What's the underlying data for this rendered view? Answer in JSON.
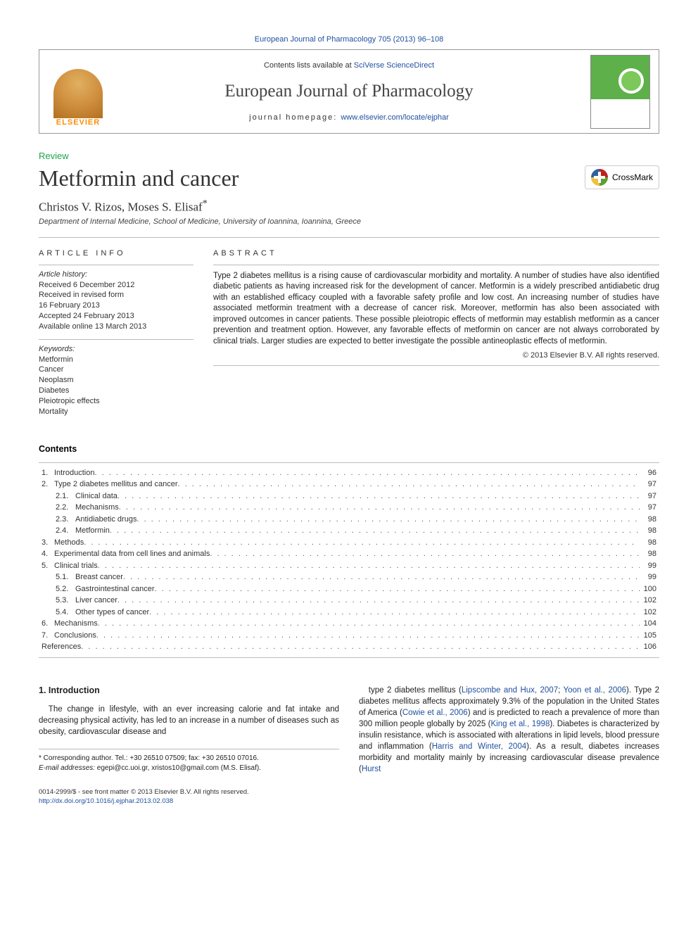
{
  "colors": {
    "link": "#2050a0",
    "review_green": "#1aa54a",
    "text": "#222222",
    "rule": "#bbbbbb",
    "elsevier_orange": "#ff8c00",
    "cover_green": "#5db04a"
  },
  "topLink": {
    "journal": "European Journal of Pharmacology 705 (2013) 96–108"
  },
  "header": {
    "publisher_logo_text": "ELSEVIER",
    "contents_prefix": "Contents lists available at ",
    "contents_link": "SciVerse ScienceDirect",
    "journal_name": "European Journal of Pharmacology",
    "homepage_prefix": "journal homepage: ",
    "homepage_link": "www.elsevier.com/locate/ejphar"
  },
  "review_label": "Review",
  "title": "Metformin and cancer",
  "crossmark_label": "CrossMark",
  "authors": "Christos V. Rizos, Moses S. Elisaf",
  "author_note_marker": "*",
  "affiliation": "Department of Internal Medicine, School of Medicine, University of Ioannina, Ioannina, Greece",
  "article_info_label": "ARTICLE INFO",
  "history": {
    "title": "Article history:",
    "lines": [
      "Received 6 December 2012",
      "Received in revised form",
      "16 February 2013",
      "Accepted 24 February 2013",
      "Available online 13 March 2013"
    ]
  },
  "keywords": {
    "title": "Keywords:",
    "items": [
      "Metformin",
      "Cancer",
      "Neoplasm",
      "Diabetes",
      "Pleiotropic effects",
      "Mortality"
    ]
  },
  "abstract_label": "ABSTRACT",
  "abstract": "Type 2 diabetes mellitus is a rising cause of cardiovascular morbidity and mortality. A number of studies have also identified diabetic patients as having increased risk for the development of cancer. Metformin is a widely prescribed antidiabetic drug with an established efficacy coupled with a favorable safety profile and low cost. An increasing number of studies have associated metformin treatment with a decrease of cancer risk. Moreover, metformin has also been associated with improved outcomes in cancer patients. These possible pleiotropic effects of metformin may establish metformin as a cancer prevention and treatment option. However, any favorable effects of metformin on cancer are not always corroborated by clinical trials. Larger studies are expected to better investigate the possible antineoplastic effects of metformin.",
  "copyright": "© 2013 Elsevier B.V. All rights reserved.",
  "contents_title": "Contents",
  "toc": [
    {
      "level": 1,
      "num": "1.",
      "label": "Introduction",
      "page": "96"
    },
    {
      "level": 1,
      "num": "2.",
      "label": "Type 2 diabetes mellitus and cancer",
      "page": "97"
    },
    {
      "level": 2,
      "num": "2.1.",
      "label": "Clinical data",
      "page": "97"
    },
    {
      "level": 2,
      "num": "2.2.",
      "label": "Mechanisms",
      "page": "97"
    },
    {
      "level": 2,
      "num": "2.3.",
      "label": "Antidiabetic drugs",
      "page": "98"
    },
    {
      "level": 2,
      "num": "2.4.",
      "label": "Metformin",
      "page": "98"
    },
    {
      "level": 1,
      "num": "3.",
      "label": "Methods",
      "page": "98"
    },
    {
      "level": 1,
      "num": "4.",
      "label": "Experimental data from cell lines and animals",
      "page": "98"
    },
    {
      "level": 1,
      "num": "5.",
      "label": "Clinical trials",
      "page": "99"
    },
    {
      "level": 2,
      "num": "5.1.",
      "label": "Breast cancer",
      "page": "99"
    },
    {
      "level": 2,
      "num": "5.2.",
      "label": "Gastrointestinal cancer",
      "page": "100"
    },
    {
      "level": 2,
      "num": "5.3.",
      "label": "Liver cancer",
      "page": "102"
    },
    {
      "level": 2,
      "num": "5.4.",
      "label": "Other types of cancer",
      "page": "102"
    },
    {
      "level": 1,
      "num": "6.",
      "label": "Mechanisms",
      "page": "104"
    },
    {
      "level": 1,
      "num": "7.",
      "label": "Conclusions",
      "page": "105"
    },
    {
      "level": 0,
      "num": "",
      "label": "References",
      "page": "106"
    }
  ],
  "body": {
    "left": {
      "heading": "1. Introduction",
      "para": "The change in lifestyle, with an ever increasing calorie and fat intake and decreasing physical activity, has led to an increase in a number of diseases such as obesity, cardiovascular disease and"
    },
    "right": {
      "para_parts": [
        {
          "t": "text",
          "v": "type 2 diabetes mellitus ("
        },
        {
          "t": "ref",
          "v": "Lipscombe and Hux, 2007"
        },
        {
          "t": "text",
          "v": "; "
        },
        {
          "t": "ref",
          "v": "Yoon et al., 2006"
        },
        {
          "t": "text",
          "v": "). Type 2 diabetes mellitus affects approximately 9.3% of the population in the United States of America ("
        },
        {
          "t": "ref",
          "v": "Cowie et al., 2006"
        },
        {
          "t": "text",
          "v": ") and is predicted to reach a prevalence of more than 300 million people globally by 2025 ("
        },
        {
          "t": "ref",
          "v": "King et al., 1998"
        },
        {
          "t": "text",
          "v": "). Diabetes is characterized by insulin resistance, which is associated with alterations in lipid levels, blood pressure and inflammation ("
        },
        {
          "t": "ref",
          "v": "Harris and Winter, 2004"
        },
        {
          "t": "text",
          "v": "). As a result, diabetes increases morbidity and mortality mainly by increasing cardiovascular disease prevalence ("
        },
        {
          "t": "ref",
          "v": "Hurst"
        }
      ]
    }
  },
  "footnote": {
    "corr": "* Corresponding author. Tel.: +30 26510 07509; fax: +30 26510 07016.",
    "email_label": "E-mail addresses:",
    "emails": " egepi@cc.uoi.gr, xristos10@gmail.com (M.S. Elisaf)."
  },
  "footer": {
    "line1": "0014-2999/$ - see front matter © 2013 Elsevier B.V. All rights reserved.",
    "doi": "http://dx.doi.org/10.1016/j.ejphar.2013.02.038"
  }
}
